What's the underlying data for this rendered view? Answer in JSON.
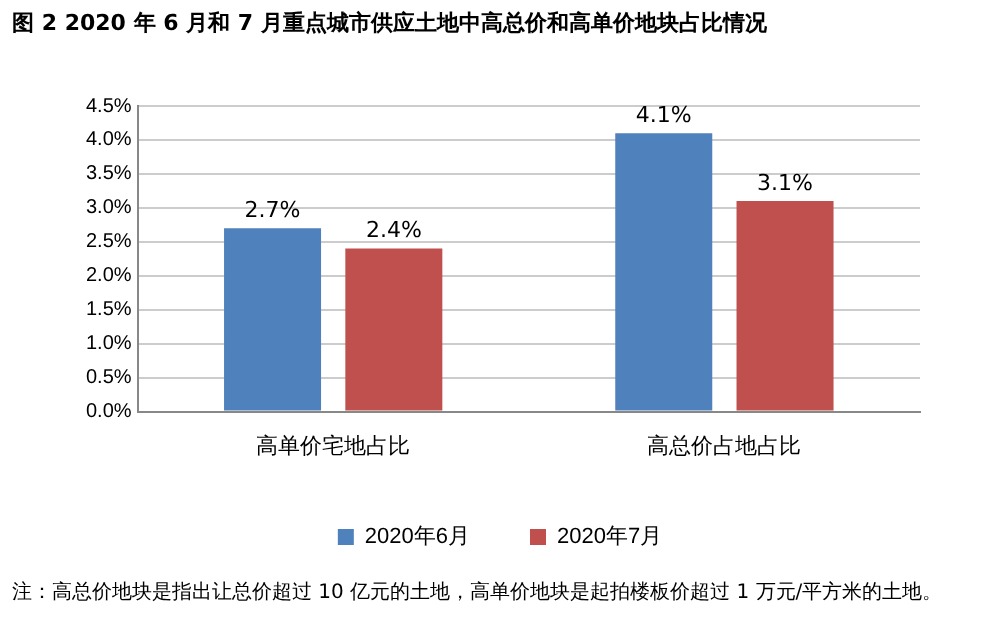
{
  "chart_data": {
    "type": "bar",
    "title": "图 2   2020 年 6 月和 7 月重点城市供应土地中高总价和高单价地块占比情况",
    "categories": [
      "高单价宅地占比",
      "高总价占地占比"
    ],
    "series": [
      {
        "name": "2020年6月",
        "color": "#4f81bd",
        "values": [
          2.7,
          4.1
        ],
        "value_labels": [
          "2.7%",
          "4.1%"
        ]
      },
      {
        "name": "2020年7月",
        "color": "#c0504d",
        "values": [
          2.4,
          3.1
        ],
        "value_labels": [
          "2.4%",
          "3.1%"
        ]
      }
    ],
    "ylim": [
      0,
      4.5
    ],
    "yticks": [
      {
        "value": 0,
        "label": "0.0%"
      },
      {
        "value": 0.5,
        "label": "0.5%"
      },
      {
        "value": 1,
        "label": "1.0%"
      },
      {
        "value": 1.5,
        "label": "1.5%"
      },
      {
        "value": 2,
        "label": "2.0%"
      },
      {
        "value": 2.5,
        "label": "2.5%"
      },
      {
        "value": 3,
        "label": "3.0%"
      },
      {
        "value": 3.5,
        "label": "3.5%"
      },
      {
        "value": 4,
        "label": "4.0%"
      },
      {
        "value": 4.5,
        "label": "4.5%"
      }
    ],
    "grid": "y",
    "legend": "bottom",
    "annotations": [
      "注：高总价地块是指出让总价超过 10 亿元的土地，高单价地块是起拍楼板价超过 1 万元/平方米的土地。"
    ]
  }
}
